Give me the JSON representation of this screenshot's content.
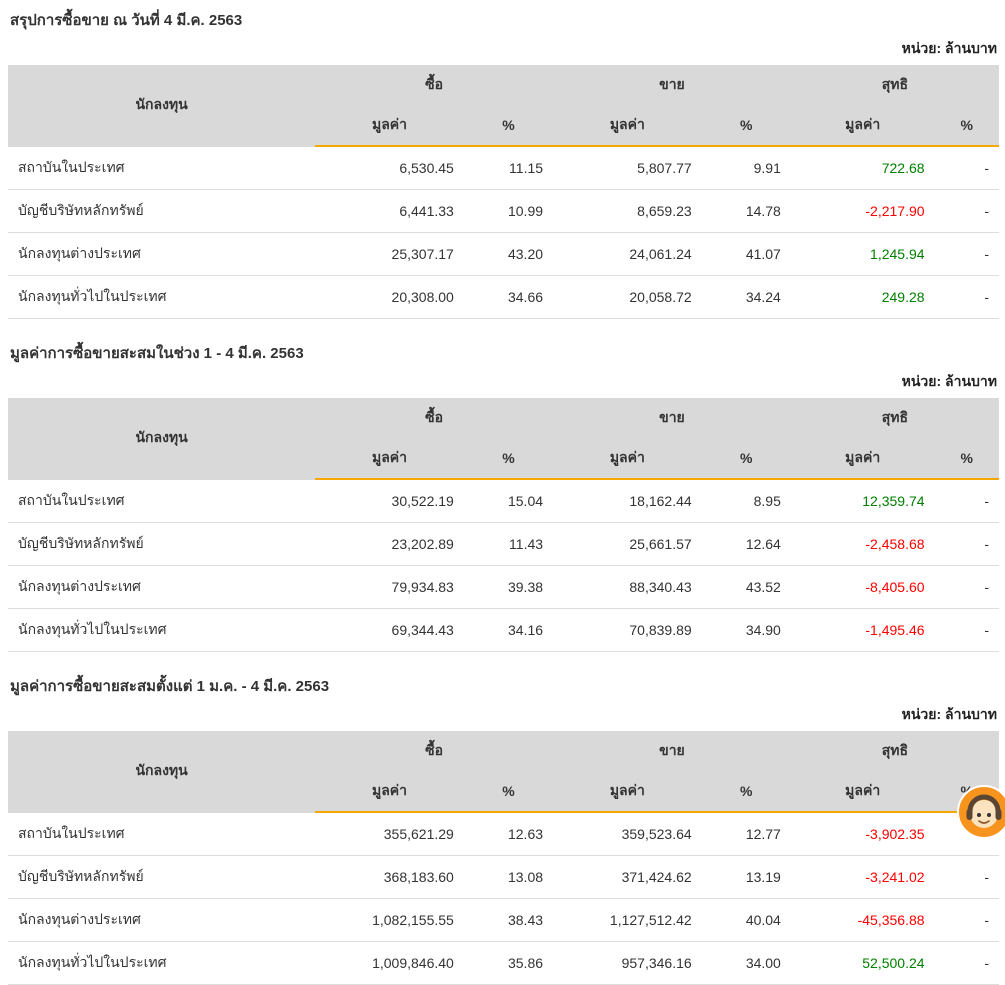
{
  "unit_label": "หน่วย: ล้านบาท",
  "columns": {
    "investor": "นักลงทุน",
    "buy": "ซื้อ",
    "sell": "ขาย",
    "net": "สุทธิ",
    "value": "มูลค่า",
    "percent": "%"
  },
  "colors": {
    "accent": "#f7a800",
    "header_bg": "#d9d9d9",
    "positive": "#008000",
    "negative": "#ff0000",
    "chatbot_bg": "#f7941e"
  },
  "tables": [
    {
      "title": "สรุปการซื้อขาย ณ วันที่ 4 มี.ค. 2563",
      "rows": [
        {
          "investor": "สถาบันในประเทศ",
          "buy_value": "6,530.45",
          "buy_pct": "11.15",
          "sell_value": "5,807.77",
          "sell_pct": "9.91",
          "net_value": "722.68",
          "net_pct": "-"
        },
        {
          "investor": "บัญชีบริษัทหลักทรัพย์",
          "buy_value": "6,441.33",
          "buy_pct": "10.99",
          "sell_value": "8,659.23",
          "sell_pct": "14.78",
          "net_value": "-2,217.90",
          "net_pct": "-"
        },
        {
          "investor": "นักลงทุนต่างประเทศ",
          "buy_value": "25,307.17",
          "buy_pct": "43.20",
          "sell_value": "24,061.24",
          "sell_pct": "41.07",
          "net_value": "1,245.94",
          "net_pct": "-"
        },
        {
          "investor": "นักลงทุนทั่วไปในประเทศ",
          "buy_value": "20,308.00",
          "buy_pct": "34.66",
          "sell_value": "20,058.72",
          "sell_pct": "34.24",
          "net_value": "249.28",
          "net_pct": "-"
        }
      ]
    },
    {
      "title": "มูลค่าการซื้อขายสะสมในช่วง 1 - 4 มี.ค. 2563",
      "rows": [
        {
          "investor": "สถาบันในประเทศ",
          "buy_value": "30,522.19",
          "buy_pct": "15.04",
          "sell_value": "18,162.44",
          "sell_pct": "8.95",
          "net_value": "12,359.74",
          "net_pct": "-"
        },
        {
          "investor": "บัญชีบริษัทหลักทรัพย์",
          "buy_value": "23,202.89",
          "buy_pct": "11.43",
          "sell_value": "25,661.57",
          "sell_pct": "12.64",
          "net_value": "-2,458.68",
          "net_pct": "-"
        },
        {
          "investor": "นักลงทุนต่างประเทศ",
          "buy_value": "79,934.83",
          "buy_pct": "39.38",
          "sell_value": "88,340.43",
          "sell_pct": "43.52",
          "net_value": "-8,405.60",
          "net_pct": "-"
        },
        {
          "investor": "นักลงทุนทั่วไปในประเทศ",
          "buy_value": "69,344.43",
          "buy_pct": "34.16",
          "sell_value": "70,839.89",
          "sell_pct": "34.90",
          "net_value": "-1,495.46",
          "net_pct": "-"
        }
      ]
    },
    {
      "title": "มูลค่าการซื้อขายสะสมตั้งแต่ 1 ม.ค. - 4 มี.ค. 2563",
      "rows": [
        {
          "investor": "สถาบันในประเทศ",
          "buy_value": "355,621.29",
          "buy_pct": "12.63",
          "sell_value": "359,523.64",
          "sell_pct": "12.77",
          "net_value": "-3,902.35",
          "net_pct": "-"
        },
        {
          "investor": "บัญชีบริษัทหลักทรัพย์",
          "buy_value": "368,183.60",
          "buy_pct": "13.08",
          "sell_value": "371,424.62",
          "sell_pct": "13.19",
          "net_value": "-3,241.02",
          "net_pct": "-"
        },
        {
          "investor": "นักลงทุนต่างประเทศ",
          "buy_value": "1,082,155.55",
          "buy_pct": "38.43",
          "sell_value": "1,127,512.42",
          "sell_pct": "40.04",
          "net_value": "-45,356.88",
          "net_pct": "-"
        },
        {
          "investor": "นักลงทุนทั่วไปในประเทศ",
          "buy_value": "1,009,846.40",
          "buy_pct": "35.86",
          "sell_value": "957,346.16",
          "sell_pct": "34.00",
          "net_value": "52,500.24",
          "net_pct": "-"
        }
      ]
    }
  ],
  "chatbot": {
    "icon": "headset-mascot-icon"
  }
}
